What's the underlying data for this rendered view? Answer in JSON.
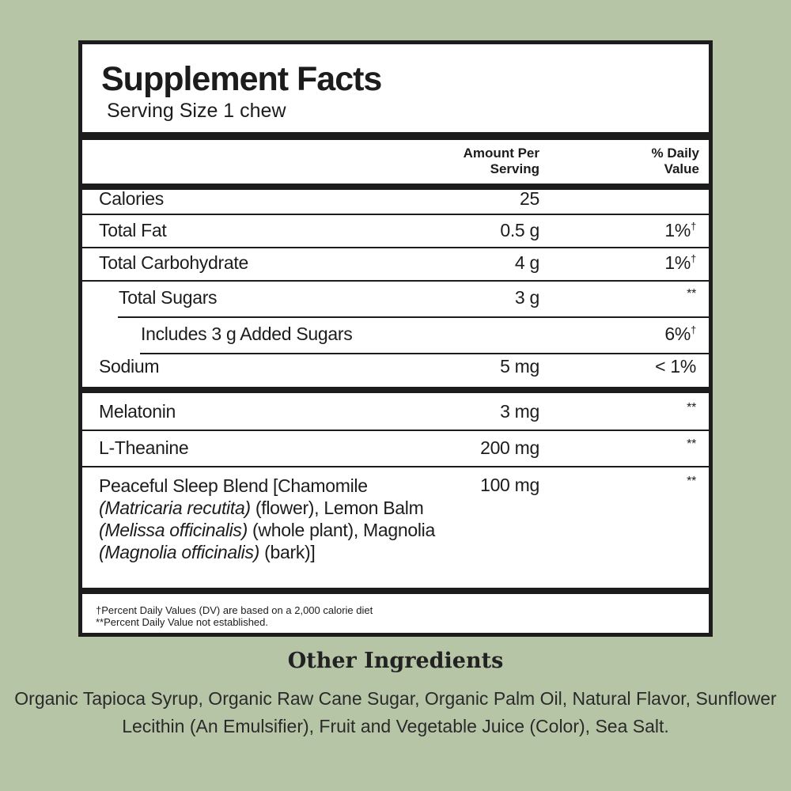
{
  "label": {
    "title": "Supplement Facts",
    "serving_size": "Serving Size 1 chew",
    "column_headers": {
      "amount_line1": "Amount Per",
      "amount_line2": "Serving",
      "dv_line1": "% Daily",
      "dv_line2": "Value"
    },
    "rows": [
      {
        "name": "Calories",
        "amount": "25",
        "dv": ""
      },
      {
        "name": "Total Fat",
        "amount": "0.5 g",
        "dv": "1%",
        "dv_mark": "†"
      },
      {
        "name": "Total Carbohydrate",
        "amount": "4 g",
        "dv": "1%",
        "dv_mark": "†"
      },
      {
        "name": "Total Sugars",
        "amount": "3 g",
        "dv": "**"
      },
      {
        "name": "Includes 3 g Added Sugars",
        "amount": "",
        "dv": "6%",
        "dv_mark": "†"
      },
      {
        "name": "Sodium",
        "amount": "5 mg",
        "dv": "< 1%"
      },
      {
        "name": "Melatonin",
        "amount": "3 mg",
        "dv": "**"
      },
      {
        "name": "L-Theanine",
        "amount": "200 mg",
        "dv": "**"
      }
    ],
    "blend": {
      "parts": [
        "Peaceful Sleep Blend [Chamomile ",
        "(Matricaria recutita)",
        " (flower), Lemon Balm ",
        "(Melissa officinalis)",
        " (whole plant), Magnolia ",
        "(Magnolia officinalis)",
        " (bark)]"
      ],
      "amount": "100 mg",
      "dv": "**"
    },
    "footnotes": [
      "†Percent Daily Values (DV) are based on a 2,000 calorie diet",
      "**Percent Daily Value not established."
    ]
  },
  "other_ingredients": {
    "title": "Other Ingredients",
    "text": "Organic Tapioca Syrup, Organic Raw Cane Sugar, Organic Palm Oil, Natural Flavor, Sunflower Lecithin (An Emulsifier), Fruit and Vegetable Juice (Color), Sea Salt."
  }
}
